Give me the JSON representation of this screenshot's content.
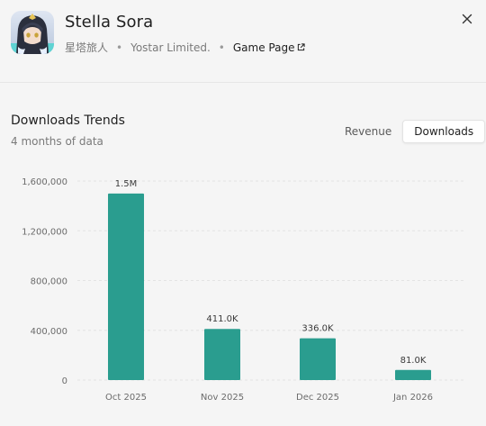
{
  "app": {
    "title": "Stella Sora",
    "subtitle_cn": "星塔旅人",
    "publisher": "Yostar Limited.",
    "sep": "•",
    "game_page_label": "Game Page",
    "icon": "app-icon-anime-character"
  },
  "close_icon": "close-icon",
  "section": {
    "title": "Downloads Trends",
    "subtitle": "4 months of data"
  },
  "toggle": {
    "revenue_label": "Revenue",
    "downloads_label": "Downloads",
    "active": "Downloads"
  },
  "colors": {
    "bar": "#2a9d8f",
    "background": "#f5f5f5",
    "grid": "#e3e3e3"
  },
  "chart_data": {
    "type": "bar",
    "title": "Downloads Trends",
    "categories": [
      "Oct 2025",
      "Nov 2025",
      "Dec 2025",
      "Jan 2026"
    ],
    "values": [
      1500000,
      411000,
      336000,
      81000
    ],
    "data_labels": [
      "1.5M",
      "411.0K",
      "336.0K",
      "81.0K"
    ],
    "yticks": [
      0,
      400000,
      800000,
      1200000,
      1600000
    ],
    "ytick_labels": [
      "0",
      "400,000",
      "800,000",
      "1,200,000",
      "1,600,000"
    ],
    "ylim": [
      0,
      1600000
    ],
    "grid": true,
    "legend": "none"
  }
}
